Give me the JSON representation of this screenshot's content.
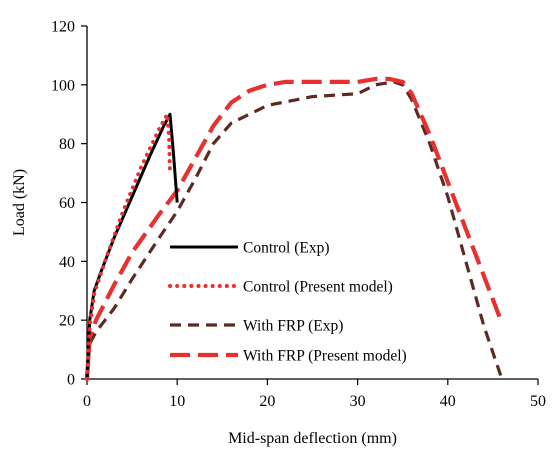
{
  "chart_data": {
    "type": "line",
    "title": "",
    "xlabel": "Mid-span deflection (mm)",
    "ylabel": "Load (kN)",
    "xlim": [
      0,
      50
    ],
    "ylim": [
      0,
      120
    ],
    "xticks": [
      0,
      10,
      20,
      30,
      40,
      50
    ],
    "yticks": [
      0,
      20,
      40,
      60,
      80,
      100,
      120
    ],
    "grid": false,
    "legend_position": "center-right",
    "series": [
      {
        "name": "Control (Exp)",
        "color": "#000000",
        "style": "solid",
        "x": [
          0,
          0.3,
          0.8,
          1.5,
          3,
          5,
          7,
          8.5,
          9.2,
          9.6,
          10.0
        ],
        "y": [
          0,
          20,
          30,
          36,
          48,
          62,
          76,
          86,
          90,
          76,
          60
        ]
      },
      {
        "name": "Control (Present model)",
        "color": "#e8312f",
        "style": "dotted",
        "x": [
          0,
          0.3,
          0.8,
          2,
          4,
          6,
          8,
          8.9,
          9.1,
          9.2
        ],
        "y": [
          0,
          18,
          29,
          40,
          57,
          72,
          85,
          90,
          82,
          70
        ]
      },
      {
        "name": "With FRP (Exp)",
        "color": "#5c2a22",
        "style": "dashed",
        "x": [
          0,
          0.3,
          1,
          3,
          5,
          8,
          10,
          12,
          14,
          16,
          20,
          25,
          30,
          32,
          34,
          35,
          36,
          38,
          40,
          42,
          44,
          46
        ],
        "y": [
          0,
          12,
          16,
          24,
          34,
          48,
          57,
          68,
          80,
          87,
          93,
          96,
          97,
          100,
          101,
          100,
          95,
          80,
          62,
          40,
          18,
          0
        ]
      },
      {
        "name": "With FRP (Present model)",
        "color": "#e8312f",
        "style": "long-dashed",
        "x": [
          0,
          0.3,
          1,
          3,
          5,
          8,
          10,
          12,
          14,
          16,
          18,
          20,
          22,
          25,
          30,
          32,
          33.5,
          35,
          36,
          38,
          40,
          42,
          44,
          46
        ],
        "y": [
          0,
          14,
          20,
          32,
          43,
          56,
          64,
          75,
          86,
          94,
          98,
          100,
          101,
          101,
          101,
          102,
          102,
          101,
          97,
          83,
          67,
          51,
          35,
          19
        ]
      }
    ]
  }
}
